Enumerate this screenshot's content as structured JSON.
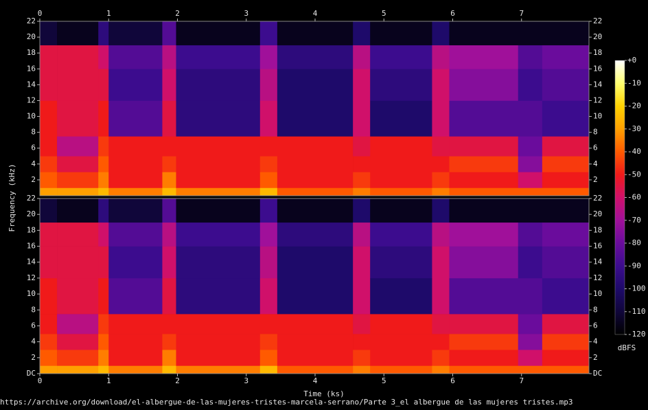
{
  "chart_data": {
    "type": "spectrogram",
    "xlabel": "Time (ks)",
    "ylabel": "Frequency (kHz)",
    "colorbar_label": "dBFS",
    "footer": "https://archive.org/download/el-albergue-de-las-mujeres-tristes-marcela-serrano/Parte 3_el albergue de las mujeres tristes.mp3",
    "xlim": [
      0,
      7.98
    ],
    "xticks": [
      0,
      1,
      2,
      3,
      4,
      5,
      6,
      7
    ],
    "ylim": [
      0,
      22
    ],
    "yticks": [
      {
        "value": 0,
        "label": "DC"
      },
      2,
      4,
      6,
      8,
      10,
      12,
      14,
      16,
      18,
      20,
      22
    ],
    "clim": [
      -120,
      0
    ],
    "cticks": [
      {
        "value": 0,
        "label": "+0"
      },
      -10,
      -20,
      -30,
      -40,
      -50,
      -60,
      -70,
      -80,
      -90,
      -100,
      -110,
      -120
    ],
    "colorscale": [
      {
        "value": -120,
        "color": "#000000"
      },
      {
        "value": -110,
        "color": "#10063a"
      },
      {
        "value": -100,
        "color": "#1e0a6a"
      },
      {
        "value": -90,
        "color": "#3c0c8e"
      },
      {
        "value": -80,
        "color": "#6a0c9c"
      },
      {
        "value": -70,
        "color": "#a0109a"
      },
      {
        "value": -60,
        "color": "#d0106a"
      },
      {
        "value": -50,
        "color": "#f01a1a"
      },
      {
        "value": -40,
        "color": "#ff5a00"
      },
      {
        "value": -30,
        "color": "#ffa000"
      },
      {
        "value": -20,
        "color": "#ffd200"
      },
      {
        "value": -10,
        "color": "#ffff70"
      },
      {
        "value": 0,
        "color": "#ffffff"
      }
    ],
    "x_edges": [
      0,
      0.25,
      0.85,
      1.0,
      1.78,
      1.98,
      3.2,
      3.45,
      4.55,
      4.8,
      5.7,
      5.95,
      6.95,
      7.3,
      7.98
    ],
    "y_edges": [
      0,
      1,
      3,
      5,
      7.5,
      12,
      16,
      19,
      22
    ],
    "values": [
      [
        -30,
        -40,
        -45,
        -50,
        -50,
        -55,
        -55,
        -110
      ],
      [
        -30,
        -45,
        -55,
        -65,
        -55,
        -55,
        -55,
        -115
      ],
      [
        -25,
        -35,
        -40,
        -45,
        -50,
        -55,
        -60,
        -95
      ],
      [
        -35,
        -50,
        -50,
        -50,
        -85,
        -90,
        -85,
        -110
      ],
      [
        -25,
        -35,
        -45,
        -50,
        -55,
        -60,
        -65,
        -85
      ],
      [
        -35,
        -50,
        -50,
        -50,
        -95,
        -95,
        -90,
        -115
      ],
      [
        -25,
        -40,
        -45,
        -50,
        -60,
        -65,
        -70,
        -90
      ],
      [
        -40,
        -50,
        -50,
        -50,
        -100,
        -100,
        -95,
        -115
      ],
      [
        -35,
        -45,
        -50,
        -55,
        -60,
        -60,
        -65,
        -100
      ],
      [
        -40,
        -50,
        -50,
        -50,
        -100,
        -95,
        -90,
        -115
      ],
      [
        -35,
        -45,
        -50,
        -55,
        -60,
        -60,
        -65,
        -100
      ],
      [
        -40,
        -50,
        -45,
        -55,
        -85,
        -75,
        -70,
        -115
      ],
      [
        -40,
        -60,
        -75,
        -80,
        -85,
        -90,
        -85,
        -115
      ],
      [
        -40,
        -50,
        -45,
        -55,
        -90,
        -85,
        -80,
        -115
      ]
    ]
  }
}
